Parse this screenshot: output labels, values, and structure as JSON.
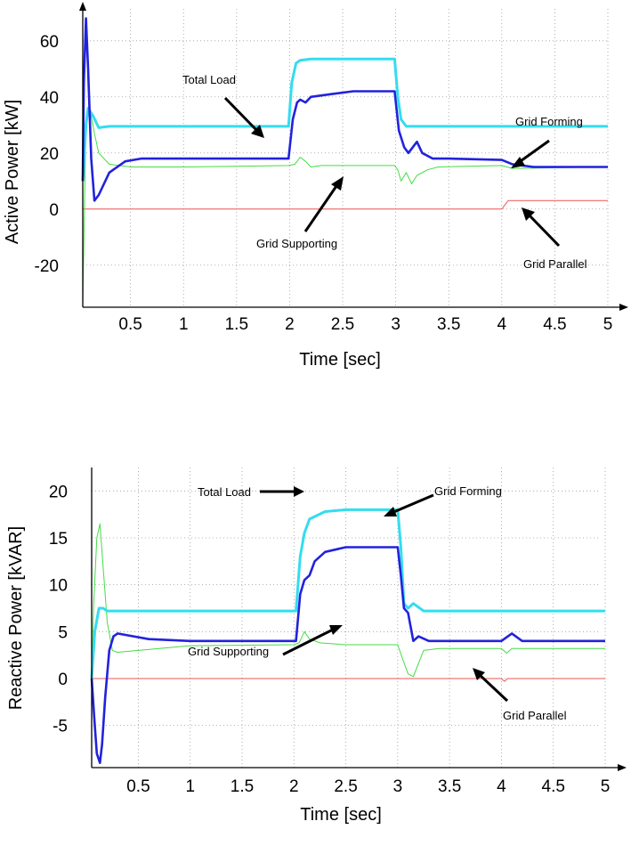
{
  "chart_data": [
    {
      "type": "line",
      "xlabel": "Time [sec]",
      "ylabel": "Active Power  [kW]",
      "xlim": [
        0.05,
        5.0
      ],
      "ylim": [
        -35,
        72
      ],
      "xticks": [
        0.5,
        1,
        1.5,
        2,
        2.5,
        3,
        3.5,
        4,
        4.5,
        5
      ],
      "xtick_labels": [
        "0.5",
        "1",
        "1.5",
        "2",
        "2.5",
        "3",
        "3.5",
        "4",
        "4.5",
        "5"
      ],
      "yticks": [
        60,
        40,
        20,
        0,
        -20
      ],
      "ytick_labels": [
        "60",
        "40",
        "20",
        "0",
        "-20"
      ],
      "grid": true,
      "series": [
        {
          "name": "Total Load",
          "color": "#33ddee",
          "x": [
            0.05,
            0.08,
            0.1,
            0.15,
            0.2,
            0.3,
            1.0,
            1.99,
            2.02,
            2.06,
            2.1,
            2.2,
            2.5,
            2.99,
            3.02,
            3.05,
            3.1,
            3.5,
            4.0,
            5.0
          ],
          "y": [
            10,
            30,
            36,
            33,
            29,
            29.5,
            29.5,
            29.5,
            45,
            52,
            53,
            53.5,
            53.5,
            53.5,
            40,
            32,
            29.5,
            29.5,
            29.5,
            29.5
          ]
        },
        {
          "name": "Grid Forming",
          "color": "#2222dd",
          "x": [
            0.05,
            0.06,
            0.08,
            0.1,
            0.13,
            0.16,
            0.2,
            0.3,
            0.45,
            0.6,
            1.0,
            1.99,
            2.03,
            2.07,
            2.1,
            2.15,
            2.2,
            2.4,
            2.6,
            2.99,
            3.03,
            3.08,
            3.12,
            3.2,
            3.25,
            3.35,
            3.5,
            4.0,
            4.1,
            4.3,
            5.0
          ],
          "y": [
            10,
            45,
            68,
            50,
            18,
            3,
            5,
            13,
            17,
            18,
            18,
            18,
            32,
            38,
            39,
            38,
            40,
            41,
            42,
            42,
            28,
            22,
            20,
            24,
            20,
            18,
            18,
            17.5,
            16,
            15,
            15
          ]
        },
        {
          "name": "Grid Supporting",
          "color": "#44dd44",
          "x": [
            0.05,
            0.08,
            0.12,
            0.16,
            0.2,
            0.3,
            0.5,
            1.0,
            1.99,
            2.05,
            2.1,
            2.15,
            2.2,
            2.3,
            2.5,
            2.99,
            3.02,
            3.05,
            3.1,
            3.15,
            3.2,
            3.3,
            3.4,
            4.0,
            4.1,
            5.0
          ],
          "y": [
            -35,
            32,
            35,
            27,
            20,
            16,
            15,
            15,
            15.5,
            16,
            18.5,
            17,
            15,
            15.5,
            15.5,
            15.5,
            14,
            10,
            13,
            9,
            12,
            14,
            15,
            15.5,
            14.5,
            15
          ]
        },
        {
          "name": "Grid Parallel",
          "color": "#ee5555",
          "x": [
            0.05,
            4.0,
            4.02,
            4.06,
            4.1,
            5.0
          ],
          "y": [
            0,
            0,
            1,
            3,
            3,
            3
          ]
        }
      ],
      "annotations": [
        "Total Load",
        "Grid Forming",
        "Grid Supporting",
        "Grid Parallel"
      ]
    },
    {
      "type": "line",
      "xlabel": "Time [sec]",
      "ylabel": "Reactive Power  [kVAR]",
      "xlim": [
        0.05,
        5.0
      ],
      "ylim": [
        -9.5,
        22.5
      ],
      "xticks": [
        0.5,
        1,
        1.5,
        2,
        2.5,
        3,
        3.5,
        4,
        4.5,
        5
      ],
      "xtick_labels": [
        "0.5",
        "1",
        "1.5",
        "2",
        "2.5",
        "3",
        "3.5",
        "4",
        "4.5",
        "5"
      ],
      "yticks": [
        20,
        15,
        10,
        5,
        0,
        -5
      ],
      "ytick_labels": [
        "20",
        "15",
        "10",
        "5",
        "0",
        "-5"
      ],
      "grid": true,
      "series": [
        {
          "name": "Total Load",
          "color": "#33ddee",
          "x": [
            0.05,
            0.08,
            0.12,
            0.16,
            0.2,
            0.3,
            1.0,
            2.02,
            2.06,
            2.1,
            2.15,
            2.3,
            2.5,
            3.0,
            3.03,
            3.06,
            3.1,
            3.15,
            3.25,
            3.5,
            5.0
          ],
          "y": [
            0,
            5,
            7.5,
            7.5,
            7.2,
            7.2,
            7.2,
            7.2,
            13,
            15.5,
            17,
            17.8,
            18,
            18,
            14,
            8,
            7.5,
            8,
            7.2,
            7.2,
            7.2
          ]
        },
        {
          "name": "Grid Forming",
          "color": "#2222dd",
          "x": [
            0.05,
            0.08,
            0.1,
            0.13,
            0.15,
            0.18,
            0.22,
            0.26,
            0.3,
            0.4,
            0.6,
            1.0,
            2.02,
            2.06,
            2.1,
            2.15,
            2.2,
            2.3,
            2.5,
            3.0,
            3.03,
            3.06,
            3.1,
            3.15,
            3.2,
            3.3,
            3.5,
            4.0,
            4.1,
            4.2,
            5.0
          ],
          "y": [
            0,
            -5,
            -8,
            -9,
            -7,
            -2,
            3,
            4.5,
            4.8,
            4.6,
            4.2,
            4,
            4,
            9,
            10.5,
            11,
            12.5,
            13.5,
            14,
            14,
            11,
            7.5,
            7,
            4,
            4.5,
            4,
            4,
            4,
            4.8,
            4,
            4
          ]
        },
        {
          "name": "Grid Supporting",
          "color": "#44dd44",
          "x": [
            0.05,
            0.07,
            0.1,
            0.13,
            0.16,
            0.2,
            0.25,
            0.3,
            0.5,
            1.0,
            2.0,
            2.05,
            2.1,
            2.15,
            2.25,
            2.5,
            3.0,
            3.05,
            3.1,
            3.15,
            3.25,
            3.4,
            4.0,
            4.05,
            4.1,
            5.0
          ],
          "y": [
            0,
            8,
            15,
            16.5,
            12,
            6,
            3,
            2.8,
            3,
            3.5,
            3.6,
            3.8,
            5,
            4.2,
            3.8,
            3.6,
            3.6,
            2,
            0.5,
            0.2,
            3,
            3.2,
            3.2,
            2.7,
            3.2,
            3.2
          ]
        },
        {
          "name": "Grid Parallel",
          "color": "#ee5555",
          "x": [
            0.05,
            4.0,
            4.03,
            4.06,
            5.0
          ],
          "y": [
            0,
            0,
            -0.3,
            0,
            0
          ]
        }
      ],
      "annotations": [
        "Total Load",
        "Grid Forming",
        "Grid Supporting",
        "Grid Parallel"
      ]
    }
  ]
}
